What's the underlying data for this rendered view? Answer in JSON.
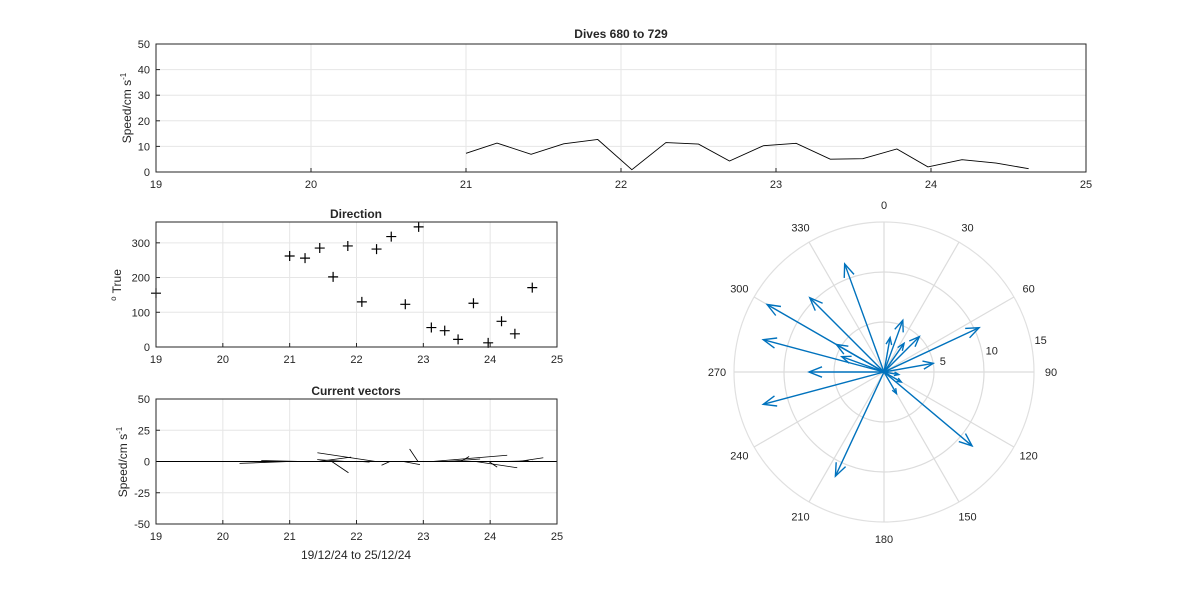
{
  "figure": {
    "background": "#ffffff",
    "axis_color": "#262626",
    "grid_color": "#e6e6e6",
    "vector_color": "#0072bd"
  },
  "chart_data": [
    {
      "type": "line",
      "title": "Dives 680 to 729",
      "ylabel": {
        "main": "Speed/cm s",
        "sup": "-1"
      },
      "xlim": [
        19,
        25
      ],
      "ylim": [
        0,
        50
      ],
      "xticks": [
        19,
        20,
        21,
        22,
        23,
        24,
        25
      ],
      "yticks": [
        0,
        10,
        20,
        30,
        40,
        50
      ],
      "grid": true,
      "series": [
        {
          "x": [
            21.0,
            21.2,
            21.42,
            21.63,
            21.85,
            22.07,
            22.29,
            22.5,
            22.7,
            22.92,
            23.13,
            23.35,
            23.56,
            23.78,
            23.98,
            24.2,
            24.42,
            24.63
          ],
          "y": [
            7.3,
            11.3,
            6.9,
            11.0,
            12.7,
            0.9,
            11.5,
            10.9,
            4.3,
            10.3,
            11.2,
            5.0,
            5.2,
            9.0,
            2.0,
            4.8,
            3.5,
            1.3
          ],
          "color": "#000000"
        }
      ]
    },
    {
      "type": "scatter",
      "title": "Direction",
      "ylabel": {
        "sup": "o",
        "main": " True"
      },
      "xlim": [
        19,
        25
      ],
      "ylim": [
        0,
        360
      ],
      "xticks": [
        19,
        20,
        21,
        22,
        23,
        24,
        25
      ],
      "yticks": [
        0,
        100,
        200,
        300
      ],
      "grid": true,
      "marker": "+",
      "points": [
        [
          19.0,
          155
        ],
        [
          21.0,
          262
        ],
        [
          21.23,
          256
        ],
        [
          21.45,
          285
        ],
        [
          21.65,
          202
        ],
        [
          21.87,
          291
        ],
        [
          22.08,
          130
        ],
        [
          22.3,
          282
        ],
        [
          22.52,
          318
        ],
        [
          22.73,
          123
        ],
        [
          22.93,
          346
        ],
        [
          23.12,
          56
        ],
        [
          23.32,
          47
        ],
        [
          23.52,
          22
        ],
        [
          23.75,
          126
        ],
        [
          23.97,
          12
        ],
        [
          24.17,
          74
        ],
        [
          24.37,
          38
        ],
        [
          24.63,
          171
        ]
      ]
    },
    {
      "type": "quiver",
      "title": "Current vectors",
      "xlabel": "19/12/24 to 25/12/24",
      "ylabel": {
        "main": "Speed/cm s",
        "sup": "-1"
      },
      "xlim": [
        19,
        25
      ],
      "ylim": [
        -50,
        50
      ],
      "xticks": [
        19,
        20,
        21,
        22,
        23,
        24,
        25
      ],
      "yticks": [
        -50,
        -25,
        0,
        25,
        50
      ],
      "grid": true,
      "vectors": [
        [
          21.0,
          0,
          -6,
          -1.5
        ],
        [
          21.2,
          0,
          -5,
          0.8
        ],
        [
          21.42,
          0,
          4,
          3.5
        ],
        [
          21.63,
          0,
          2,
          -9
        ],
        [
          21.85,
          0,
          -3.5,
          1.5
        ],
        [
          22.07,
          0,
          1,
          -0.5
        ],
        [
          22.29,
          0,
          -7,
          7
        ],
        [
          22.5,
          0,
          -1,
          -3
        ],
        [
          22.7,
          0,
          2,
          -2.5
        ],
        [
          22.92,
          0,
          -1,
          10
        ],
        [
          23.13,
          0,
          9,
          5
        ],
        [
          23.35,
          0,
          4,
          2
        ],
        [
          23.56,
          0,
          1,
          4
        ],
        [
          23.78,
          0,
          5,
          -5
        ],
        [
          23.98,
          0,
          1,
          -4.5
        ],
        [
          24.2,
          0,
          3,
          0.5
        ],
        [
          24.42,
          0,
          3,
          3
        ],
        [
          24.63,
          0,
          0,
          0.5
        ]
      ]
    },
    {
      "type": "polar",
      "angle_zero": "top",
      "direction": "clockwise",
      "rlim": [
        0,
        15
      ],
      "rticks": [
        5,
        10,
        15
      ],
      "theta_ticks": [
        0,
        30,
        60,
        90,
        120,
        150,
        180,
        210,
        240,
        270,
        300,
        330
      ],
      "grid": true,
      "vectors": [
        {
          "dir": 340,
          "speed": 11.5
        },
        {
          "dir": 315,
          "speed": 10.5
        },
        {
          "dir": 300,
          "speed": 13.5
        },
        {
          "dir": 285,
          "speed": 12.5
        },
        {
          "dir": 270,
          "speed": 7.5
        },
        {
          "dir": 255,
          "speed": 12.5
        },
        {
          "dir": 205,
          "speed": 11.5
        },
        {
          "dir": 130,
          "speed": 11.5
        },
        {
          "dir": 65,
          "speed": 10.5
        },
        {
          "dir": 80,
          "speed": 5.0
        },
        {
          "dir": 45,
          "speed": 5.0
        },
        {
          "dir": 20,
          "speed": 5.5
        },
        {
          "dir": 10,
          "speed": 3.5
        },
        {
          "dir": 35,
          "speed": 3.5
        },
        {
          "dir": 150,
          "speed": 2.5
        },
        {
          "dir": 300,
          "speed": 5.5
        },
        {
          "dir": 290,
          "speed": 4.5
        },
        {
          "dir": 120,
          "speed": 2.0
        },
        {
          "dir": 100,
          "speed": 1.5
        }
      ]
    }
  ]
}
